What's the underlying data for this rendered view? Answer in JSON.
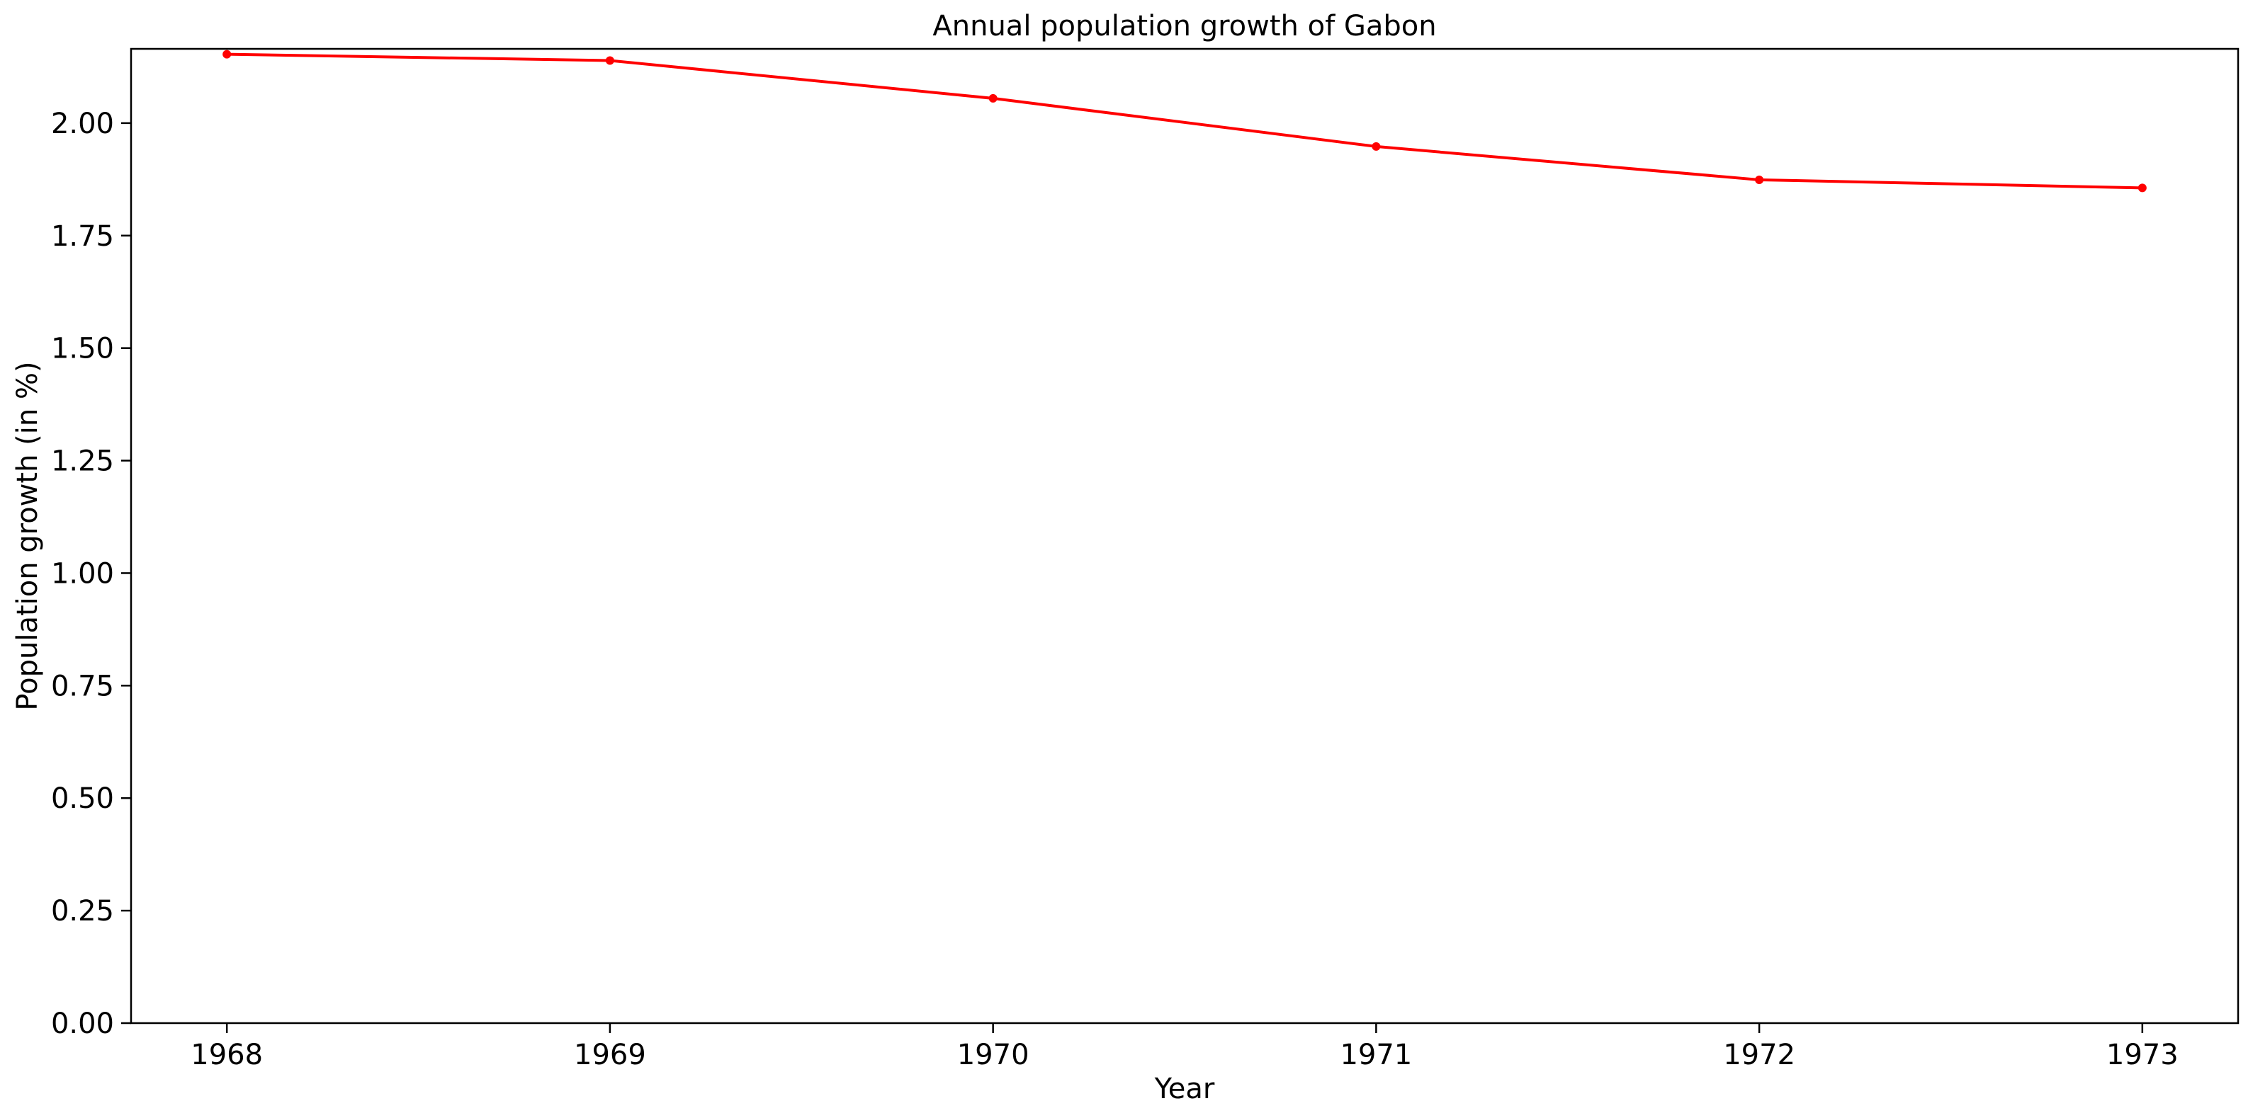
{
  "chart_data": {
    "type": "line",
    "title": "Annual population growth of Gabon",
    "xlabel": "Year",
    "ylabel": "Population growth (in %)",
    "x": [
      1968,
      1969,
      1970,
      1971,
      1972,
      1973
    ],
    "x_tick_labels": [
      "1968",
      "1969",
      "1970",
      "1971",
      "1972",
      "1973"
    ],
    "y_ticks": [
      0.0,
      0.25,
      0.5,
      0.75,
      1.0,
      1.25,
      1.5,
      1.75,
      2.0
    ],
    "y_tick_labels": [
      "0.00",
      "0.25",
      "0.50",
      "0.75",
      "1.00",
      "1.25",
      "1.50",
      "1.75",
      "2.00"
    ],
    "series": [
      {
        "values": [
          2.153,
          2.139,
          2.055,
          1.948,
          1.874,
          1.856
        ],
        "color": "#ff0000",
        "marker": "circle"
      }
    ],
    "xlim": [
      1967.75,
      1973.25
    ],
    "ylim": [
      0,
      2.165
    ],
    "grid": false,
    "legend": "none"
  }
}
